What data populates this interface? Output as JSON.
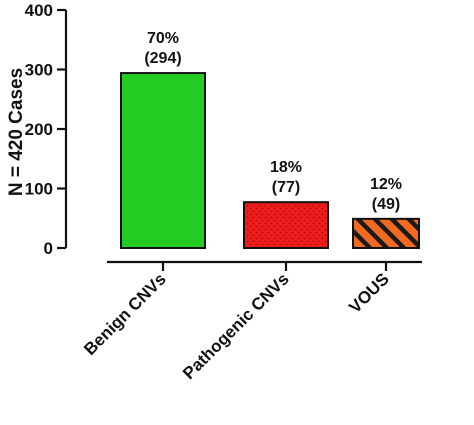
{
  "chart_data": {
    "type": "bar",
    "categories": [
      "Benign CNVs",
      "Pathogenic CNVs",
      "VOUS"
    ],
    "values": [
      294,
      77,
      49
    ],
    "percent_labels": [
      "70%",
      "18%",
      "12%"
    ],
    "count_labels": [
      "(294)",
      "(77)",
      "(49)"
    ],
    "title": "",
    "xlabel": "",
    "ylabel": "N = 420 Cases",
    "ylim": [
      0,
      400
    ],
    "yticks": [
      0,
      100,
      200,
      300,
      400
    ],
    "yticks_labels": [
      "0",
      "100",
      "200",
      "300",
      "400"
    ],
    "grid": false,
    "legend": "none",
    "bar_styles": [
      {
        "fill": "#22cc22",
        "pattern": "solid"
      },
      {
        "fill": "#ee1c1c",
        "pattern": "dots"
      },
      {
        "fill": "#f26a21",
        "pattern": "diagonal-stripes",
        "stripe_color": "#1a1a1a"
      }
    ]
  }
}
